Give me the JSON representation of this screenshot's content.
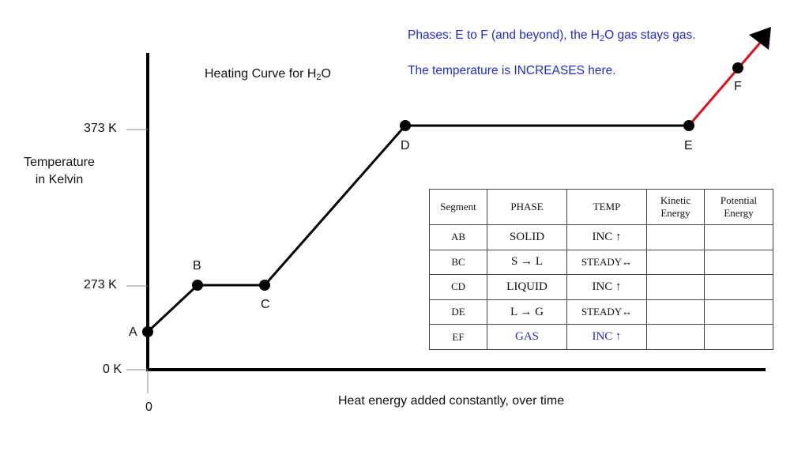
{
  "annotations": {
    "phase_note_prefix": "Phases:  E to F (and beyond), the H",
    "phase_note_sub": "2",
    "phase_note_suffix": "O gas stays gas.",
    "temp_note": "The temperature is INCREASES here."
  },
  "title": {
    "prefix": "Heating Curve for H",
    "sub": "2",
    "suffix": "O"
  },
  "y_axis": {
    "label_line1": "Temperature",
    "label_line2": "in Kelvin",
    "ticks": [
      "373 K",
      "273 K",
      "0 K"
    ]
  },
  "x_axis": {
    "label": "Heat energy added constantly, over time",
    "origin": "0"
  },
  "points": [
    "A",
    "B",
    "C",
    "D",
    "E",
    "F"
  ],
  "colors": {
    "curve": "#000000",
    "gas_segment": "#e0101a",
    "blue_text": "#1f2bd6"
  },
  "table": {
    "headers": [
      "Segment",
      "PHASE",
      "TEMP",
      "Kinetic Energy",
      "Potential Energy"
    ],
    "rows": [
      {
        "segment": "AB",
        "phase": "SOLID",
        "temp": "INC ↑",
        "kinetic": "",
        "potential": ""
      },
      {
        "segment": "BC",
        "phase": "S → L",
        "temp": "STEADY↔",
        "kinetic": "",
        "potential": ""
      },
      {
        "segment": "CD",
        "phase": "LIQUID",
        "temp": "INC ↑",
        "kinetic": "",
        "potential": ""
      },
      {
        "segment": "DE",
        "phase": "L → G",
        "temp": "STEADY↔",
        "kinetic": "",
        "potential": ""
      },
      {
        "segment": "EF",
        "phase": "GAS",
        "temp": "INC ↑",
        "kinetic": "",
        "potential": ""
      }
    ]
  }
}
